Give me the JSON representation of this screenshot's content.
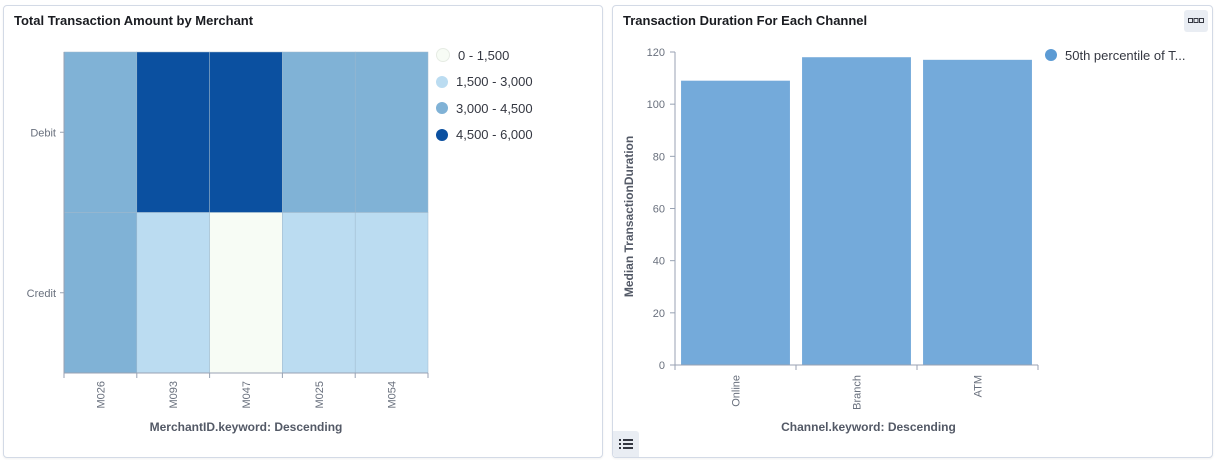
{
  "left_panel": {
    "title": "Total Transaction Amount by Merchant",
    "legend": [
      {
        "label": "0 - 1,500",
        "color": "#f7fcf5"
      },
      {
        "label": "1,500 - 3,000",
        "color": "#bbdcf1"
      },
      {
        "label": "3,000 - 4,500",
        "color": "#80b2d6"
      },
      {
        "label": "4,500 - 6,000",
        "color": "#0b50a0"
      }
    ]
  },
  "right_panel": {
    "title": "Transaction Duration For Each Channel",
    "legend": [
      {
        "label": "50th percentile of T...",
        "color": "#5c9bd4"
      }
    ]
  },
  "chart_data": [
    {
      "type": "heatmap",
      "title": "Total Transaction Amount by Merchant",
      "xlabel": "MerchantID.keyword: Descending",
      "ylabel": "",
      "x": [
        "M026",
        "M093",
        "M047",
        "M025",
        "M054"
      ],
      "y": [
        "Debit",
        "Credit"
      ],
      "bins": [
        "0 - 1,500",
        "1,500 - 3,000",
        "3,000 - 4,500",
        "4,500 - 6,000"
      ],
      "cells": [
        [
          2,
          3,
          3,
          2,
          2
        ],
        [
          2,
          1,
          0,
          1,
          1
        ]
      ]
    },
    {
      "type": "bar",
      "title": "Transaction Duration For Each Channel",
      "xlabel": "Channel.keyword: Descending",
      "ylabel": "Median TransactionDuration",
      "categories": [
        "Online",
        "Branch",
        "ATM"
      ],
      "series": [
        {
          "name": "50th percentile of T...",
          "values": [
            109,
            118,
            117
          ]
        }
      ],
      "yticks": [
        0,
        20,
        40,
        60,
        80,
        100,
        120
      ],
      "ylim": [
        0,
        120
      ]
    }
  ]
}
